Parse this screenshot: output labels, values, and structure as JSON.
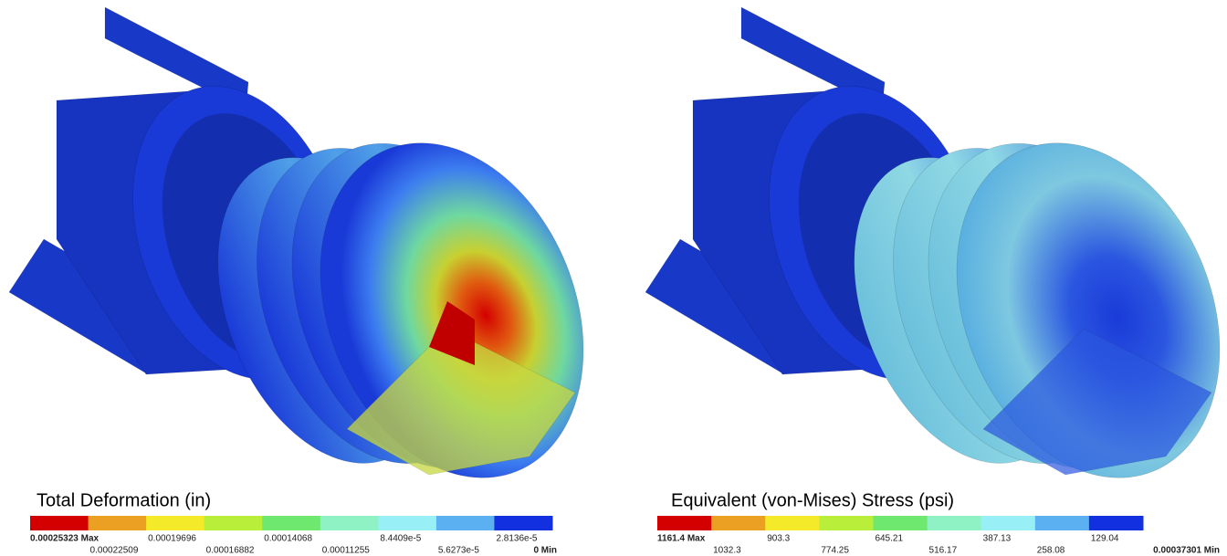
{
  "panels": [
    {
      "title": "Total Deformation (in)",
      "colors": [
        "#d40000",
        "#eca023",
        "#f5ea2a",
        "#b9ee3a",
        "#6ee86e",
        "#8ef2c4",
        "#98f0f6",
        "#5ab0f0",
        "#1330e0"
      ],
      "labels": [
        "0.00025323 Max",
        "0.00022509",
        "0.00019696",
        "0.00016882",
        "0.00014068",
        "0.00011255",
        "8.4409e-5",
        "5.6273e-5",
        "2.8136e-5",
        "0 Min"
      ]
    },
    {
      "title": "Equivalent (von-Mises) Stress (psi)",
      "colors": [
        "#d40000",
        "#eca023",
        "#f5ea2a",
        "#b9ee3a",
        "#6ee86e",
        "#8ef2c4",
        "#98f0f6",
        "#5ab0f0",
        "#1330e0"
      ],
      "labels": [
        "1161.4 Max",
        "1032.3",
        "903.3",
        "774.25",
        "645.21",
        "516.17",
        "387.13",
        "258.08",
        "129.04",
        "0.00037301 Min"
      ]
    }
  ]
}
